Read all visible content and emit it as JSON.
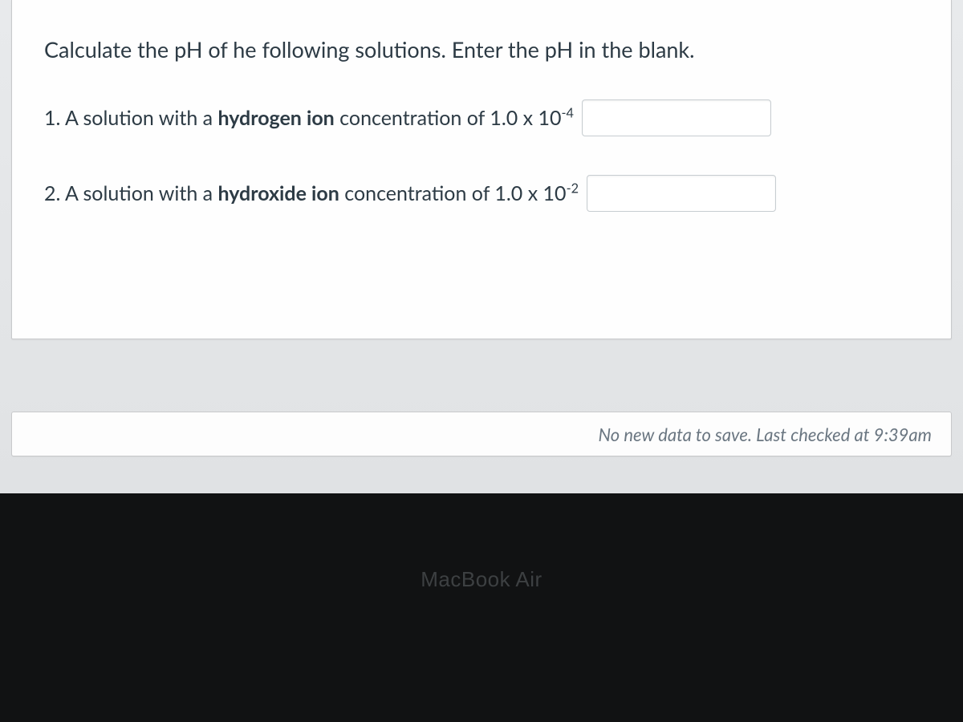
{
  "question": {
    "instruction": "Calculate the pH of he following solutions.  Enter the pH in the blank.",
    "items": [
      {
        "number": "1.",
        "before_bold": "A solution with a ",
        "bold": "hydrogen ion",
        "after_bold": " concentration of 1.0 x 10",
        "exponent": "-4",
        "value": ""
      },
      {
        "number": "2.",
        "before_bold": "A solution with a ",
        "bold": "hydroxide ion",
        "after_bold": " concentration of 1.0 x 10",
        "exponent": "-2",
        "value": ""
      }
    ]
  },
  "status": {
    "message": "No new data to save. Last checked at 9:39am"
  },
  "hardware": {
    "label": "MacBook Air"
  },
  "colors": {
    "page_bg": "#e8eaec",
    "card_bg": "#fefefe",
    "card_border": "#c8c9cb",
    "text_primary": "#2d3b45",
    "input_border": "#c7cdd1",
    "status_text": "#6a7681",
    "bezel_bg": "#111213",
    "laptop_label": "#3d4042"
  }
}
